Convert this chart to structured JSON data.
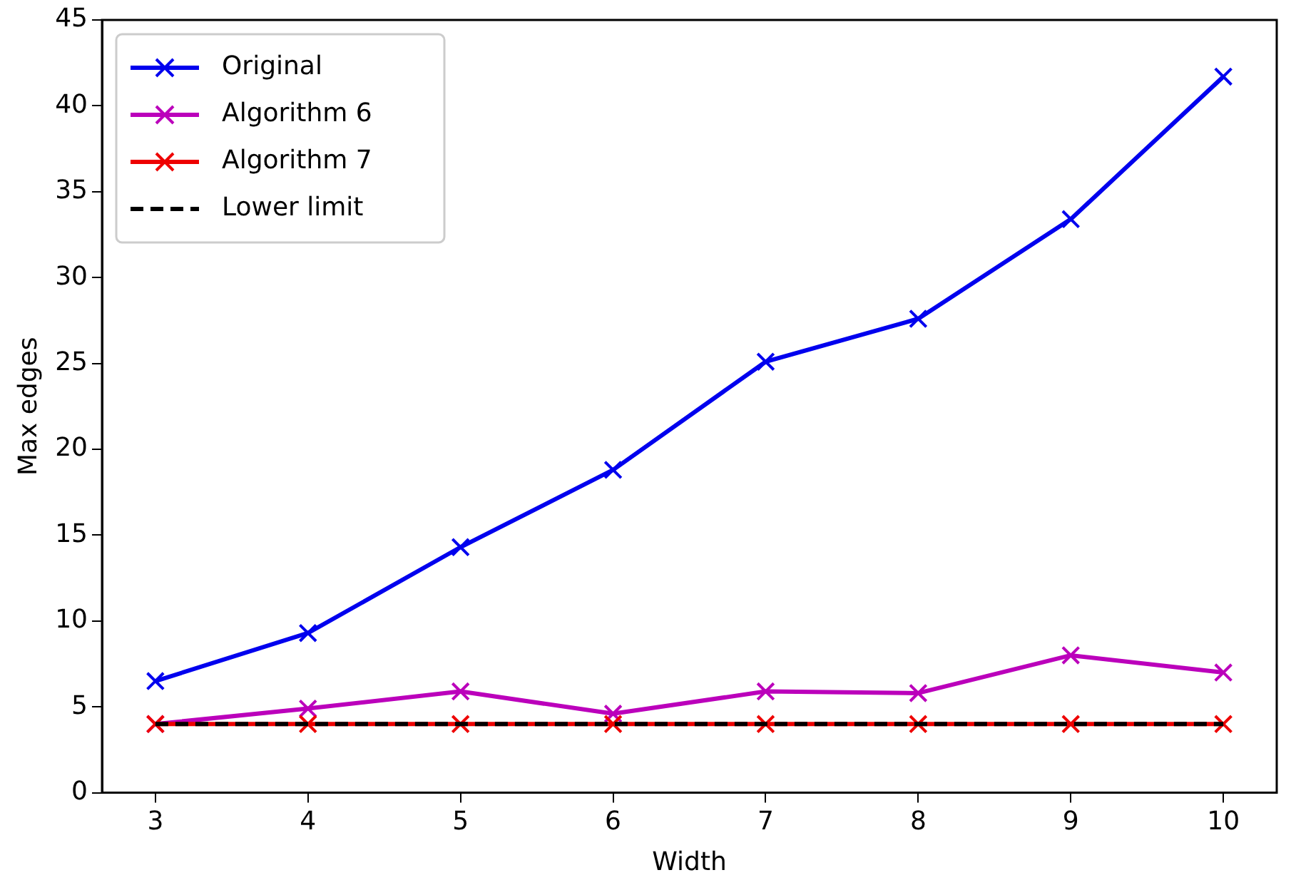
{
  "chart_data": {
    "type": "line",
    "xlabel": "Width",
    "ylabel": "Max edges",
    "x": [
      3,
      4,
      5,
      6,
      7,
      8,
      9,
      10
    ],
    "xlim": [
      2.65,
      10.35
    ],
    "xticks": [
      3,
      4,
      5,
      6,
      7,
      8,
      9,
      10
    ],
    "ylim": [
      0,
      45
    ],
    "yticks": [
      0,
      5,
      10,
      15,
      20,
      25,
      30,
      35,
      40,
      45
    ],
    "grid": false,
    "legend": "top left",
    "series": [
      {
        "name": "Original",
        "color": "#0000ee",
        "marker": "cross",
        "line_style": "solid",
        "values": [
          6.5,
          9.3,
          14.3,
          18.8,
          25.1,
          27.6,
          33.4,
          41.7
        ]
      },
      {
        "name": "Algorithm 6",
        "color": "#bb00bb",
        "marker": "cross",
        "line_style": "solid",
        "values": [
          4,
          4.9,
          5.9,
          4.6,
          5.9,
          5.8,
          8.0,
          7.0
        ]
      },
      {
        "name": "Algorithm 7",
        "color": "#ee0000",
        "marker": "cross",
        "line_style": "solid",
        "values": [
          4,
          4,
          4,
          4,
          4,
          4,
          4,
          4
        ]
      },
      {
        "name": "Lower limit",
        "color": "#000000",
        "marker": "none",
        "line_style": "dashed",
        "values": [
          4,
          4,
          4,
          4,
          4,
          4,
          4,
          4
        ]
      }
    ]
  }
}
